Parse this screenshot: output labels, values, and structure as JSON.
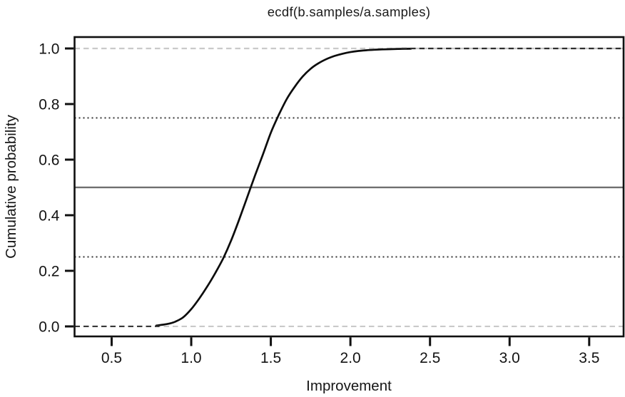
{
  "chart_data": {
    "type": "line",
    "subtype": "ecdf",
    "title": "ecdf(b.samples/a.samples)",
    "xlabel": "Improvement",
    "ylabel": "Cumulative probability",
    "xlim": [
      0.267,
      3.716
    ],
    "ylim": [
      -0.036,
      1.041
    ],
    "grid": false,
    "legend": "none",
    "background_color": "#ffffff",
    "frame_color": "#101010",
    "xticks": {
      "values": [
        0.5,
        1.0,
        1.5,
        2.0,
        2.5,
        3.0,
        3.5
      ],
      "labels": [
        "0.5",
        "1.0",
        "1.5",
        "2.0",
        "2.5",
        "3.0",
        "3.5"
      ]
    },
    "yticks": {
      "values": [
        0.0,
        0.2,
        0.4,
        0.6,
        0.8,
        1.0
      ],
      "labels": [
        "0.0",
        "0.2",
        "0.4",
        "0.6",
        "0.8",
        "1.0"
      ]
    },
    "series": [
      {
        "name": "ecdf-curve",
        "color": "#0c0c0c",
        "width": 2.7,
        "x": [
          0.78,
          0.82,
          0.86,
          0.9,
          0.95,
          1.0,
          1.05,
          1.1,
          1.15,
          1.2,
          1.25,
          1.3,
          1.35,
          1.4,
          1.45,
          1.5,
          1.55,
          1.6,
          1.65,
          1.7,
          1.75,
          1.8,
          1.85,
          1.9,
          1.95,
          2.0,
          2.05,
          2.1,
          2.15,
          2.2,
          2.25,
          2.3,
          2.38
        ],
        "y": [
          0.003,
          0.006,
          0.01,
          0.017,
          0.033,
          0.062,
          0.1,
          0.143,
          0.191,
          0.244,
          0.308,
          0.383,
          0.462,
          0.542,
          0.618,
          0.697,
          0.761,
          0.818,
          0.862,
          0.899,
          0.927,
          0.947,
          0.962,
          0.973,
          0.981,
          0.987,
          0.991,
          0.9935,
          0.9953,
          0.9966,
          0.9975,
          0.9982,
          0.999
        ]
      }
    ],
    "reference_lines": [
      {
        "name": "prob-0-line",
        "y": 0.0,
        "style": "dashed",
        "color": "#c9c9c9",
        "width": 2.2
      },
      {
        "name": "prob-25-line",
        "y": 0.25,
        "style": "dotted",
        "color": "#3e3e3e",
        "width": 2.1
      },
      {
        "name": "median-line",
        "y": 0.5,
        "style": "solid",
        "color": "#6f6f6f",
        "width": 2.4
      },
      {
        "name": "prob-75-line",
        "y": 0.75,
        "style": "dotted",
        "color": "#3e3e3e",
        "width": 2.1
      },
      {
        "name": "prob-1-line",
        "y": 1.0,
        "style": "dashed",
        "color": "#c9c9c9",
        "width": 2.2
      }
    ],
    "curve_tail_dashes": [
      {
        "name": "lower-tail-dashes",
        "y": 0.0,
        "x1": 0.267,
        "x2": 0.8,
        "color": "#3a3a3a",
        "width": 2.2
      },
      {
        "name": "upper-tail-dashes",
        "y": 1.0,
        "x1": 2.32,
        "x2": 3.716,
        "color": "#2e2e2e",
        "width": 2.2
      }
    ]
  }
}
